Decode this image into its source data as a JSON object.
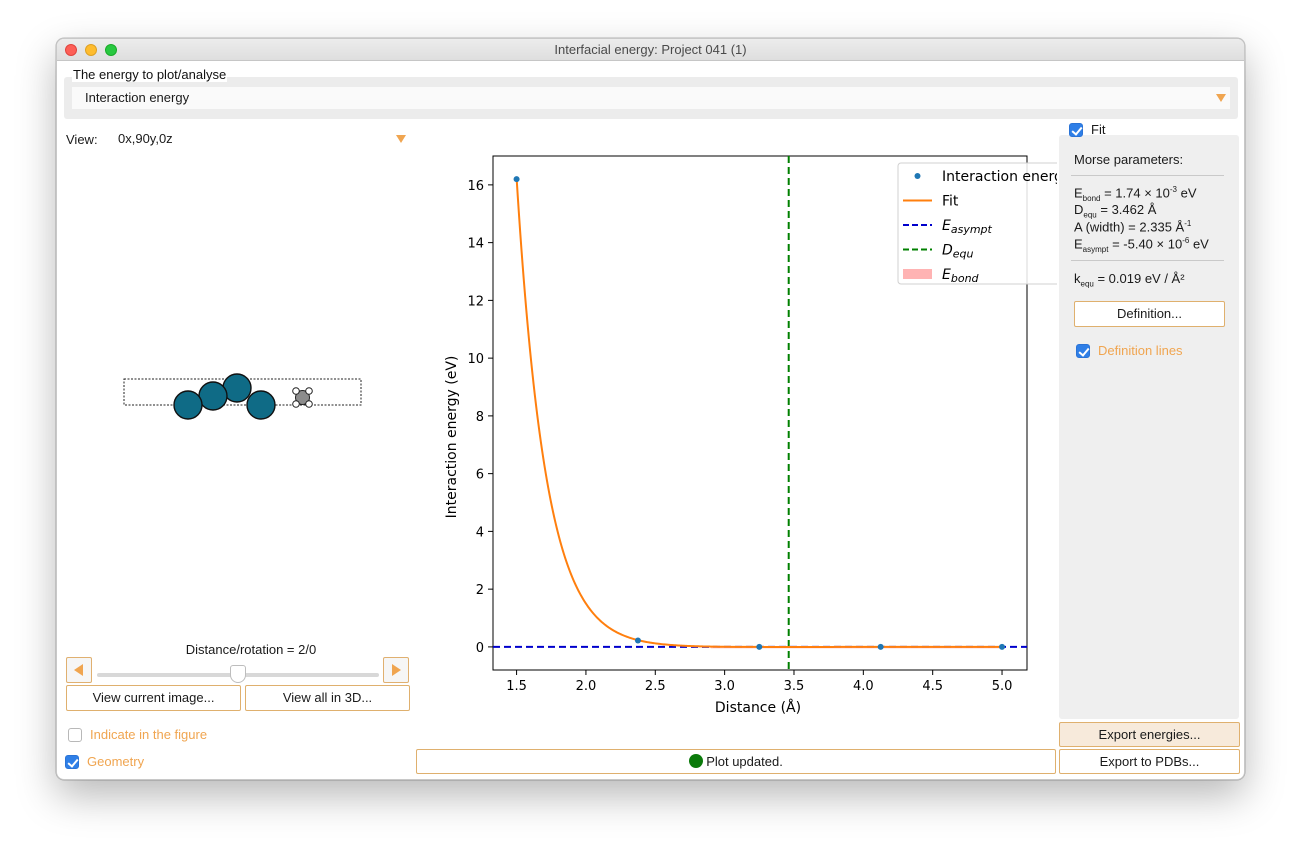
{
  "window": {
    "title": "Interfacial energy: Project 041 (1)"
  },
  "energy_group": {
    "label": "The energy to plot/analyse",
    "selected": "Interaction energy"
  },
  "view": {
    "label": "View:",
    "selected": "0x,90y,0z"
  },
  "molecule": {
    "atom_color": "#0f6b86",
    "small_atom_color": "#8c8c8c"
  },
  "navigation": {
    "distance_rotation": "Distance/rotation = 2/0",
    "slider_fraction": 0.5,
    "view_current_label": "View current image...",
    "view_all_label": "View all in 3D..."
  },
  "options": {
    "indicate_label": "Indicate in the figure",
    "indicate_checked": false,
    "geometry_label": "Geometry",
    "geometry_checked": true
  },
  "status": {
    "text": "Plot updated.",
    "color": "#0b7a0b"
  },
  "fit": {
    "label": "Fit",
    "checked": true,
    "morse_heading": "Morse parameters:",
    "e_bond": {
      "main": "E",
      "sub": "bond",
      "text": " = 1.74 × 10",
      "exp": "-3",
      "unit": " eV"
    },
    "d_equ": {
      "main": "D",
      "sub": "equ",
      "text": " = 3.462 Å"
    },
    "a_width": {
      "text": "A (width) = 2.335 Å",
      "exp": "-1"
    },
    "e_asympt": {
      "main": "E",
      "sub": "asympt",
      "text": " = -5.40 × 10",
      "exp": "-6",
      "unit": " eV"
    },
    "k_equ": {
      "main": "k",
      "sub": "equ",
      "text": " = 0.019 eV / Å²"
    },
    "definition_label": "Definition...",
    "definition_lines_label": "Definition lines",
    "definition_lines_checked": true,
    "export_energies_label": "Export energies...",
    "export_pdbs_label": "Export to PDBs..."
  },
  "colors": {
    "accent": "#f0a550",
    "checkbox_blue": "#2f7fe7",
    "data_blue": "#1f77b4",
    "fit_orange": "#ff7f0e",
    "asympt_blue": "#0000cc",
    "equ_green": "#008000",
    "bond_red": "#ffb3b3"
  },
  "chart_data": {
    "type": "line",
    "title": "",
    "xlabel": "Distance (Å)",
    "ylabel": "Interaction energy (eV)",
    "xlim": [
      1.33,
      5.18
    ],
    "ylim": [
      -0.8,
      17.0
    ],
    "xticks": [
      1.5,
      2.0,
      2.5,
      3.0,
      3.5,
      4.0,
      4.5,
      5.0
    ],
    "yticks": [
      0,
      2,
      4,
      6,
      8,
      10,
      12,
      14,
      16
    ],
    "grid": false,
    "legend_position": "top-right",
    "legend": [
      {
        "label": "Interaction energy",
        "kind": "marker"
      },
      {
        "label": "Fit",
        "kind": "line"
      },
      {
        "label": "E",
        "sub": "asympt",
        "kind": "dash-blue"
      },
      {
        "label": "D",
        "sub": "equ",
        "kind": "dash-green"
      },
      {
        "label": "E",
        "sub": "bond",
        "kind": "patch"
      }
    ],
    "series": [
      {
        "name": "Interaction energy",
        "kind": "scatter",
        "x": [
          1.5,
          2.375,
          3.25,
          4.125,
          5.0
        ],
        "y": [
          16.2,
          0.22,
          0.0,
          0.0,
          0.0
        ]
      },
      {
        "name": "Fit",
        "kind": "line",
        "model": "morse",
        "e_bond": 0.00174,
        "d_equ": 3.462,
        "a": 2.335,
        "e_asympt": -5.4e-06
      }
    ],
    "vertical_line": {
      "name": "D_equ",
      "x": 3.462
    },
    "horizontal_line": {
      "name": "E_asympt",
      "y": -5.4e-06
    }
  }
}
